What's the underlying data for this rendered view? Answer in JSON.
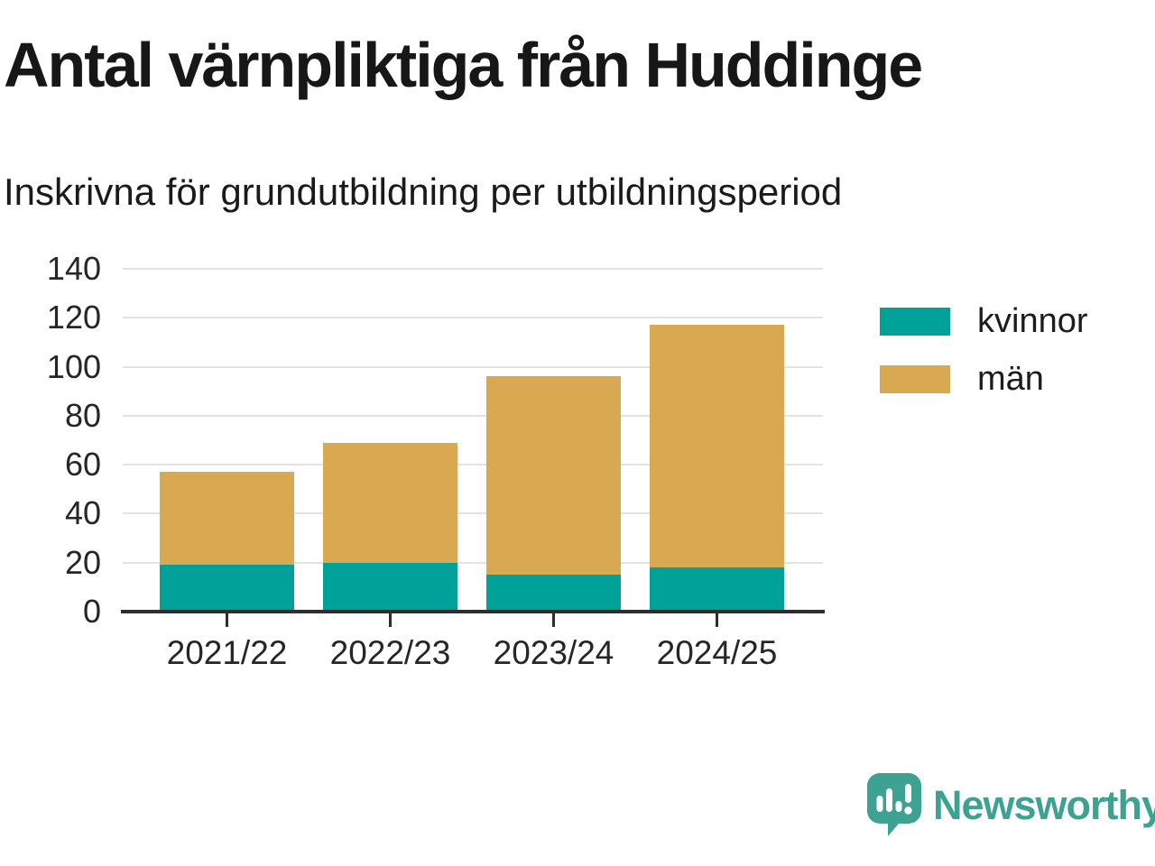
{
  "header": {
    "title": "Antal värnpliktiga från Huddinge",
    "subtitle": "Inskrivna för grundutbildning per utbildningsperiod"
  },
  "chart_data": {
    "type": "bar",
    "stacked": true,
    "title": "Antal värnpliktiga från Huddinge",
    "subtitle": "Inskrivna för grundutbildning per utbildningsperiod",
    "categories": [
      "2021/22",
      "2022/23",
      "2023/24",
      "2024/25"
    ],
    "series": [
      {
        "name": "kvinnor",
        "color": "#00a198",
        "values": [
          19,
          20,
          15,
          18
        ]
      },
      {
        "name": "män",
        "color": "#d9a952",
        "values": [
          38,
          49,
          81,
          99
        ]
      }
    ],
    "stacked_totals": [
      57,
      69,
      96,
      117
    ],
    "xlabel": "",
    "ylabel": "",
    "ylim": [
      0,
      140
    ],
    "yticks": [
      0,
      20,
      40,
      60,
      80,
      100,
      120,
      140
    ],
    "grid": true,
    "legend_position": "right"
  },
  "legend": {
    "items": [
      {
        "label": "kvinnor",
        "color": "#00a198"
      },
      {
        "label": "män",
        "color": "#d9a952"
      }
    ]
  },
  "branding": {
    "logo_text": "Newsworthy",
    "logo_icon": "bar-chart-speech-bubble-icon",
    "logo_color": "#3ea293"
  },
  "colors": {
    "kvinnor": "#00a198",
    "man": "#d9a952",
    "gridline": "#e2e2e2",
    "axis": "#2e2e2e",
    "text": "#1a1a1a",
    "brand": "#3ea293"
  }
}
